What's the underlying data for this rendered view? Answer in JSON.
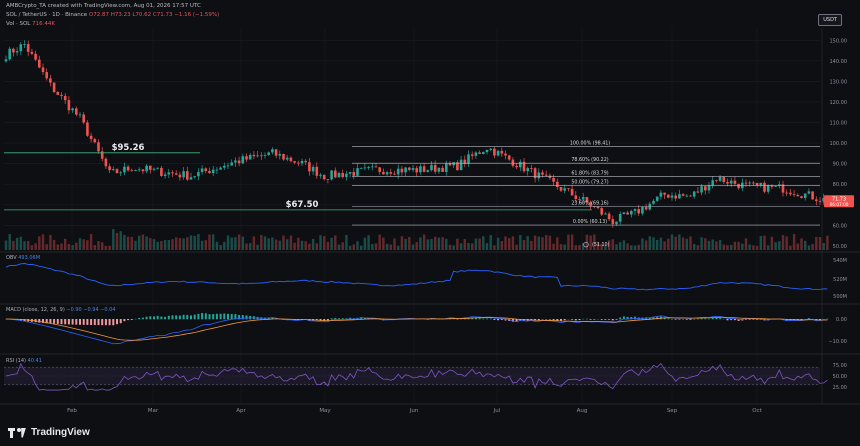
{
  "header": {
    "title": "AMBCrypto_TA created with TradingView.com, Aug 01, 2026 17:57 UTC",
    "symbol_line": "SOL / TetherUS · 1D · Binance",
    "ohlc": "O72.87 H73.23 L70.62 C71.73 −1.16 (−1.59%)",
    "vol_line": "Vol · SOL",
    "vol_value": "716.44K",
    "currency_badge": "USDT"
  },
  "panes": {
    "obv_label": "OBV",
    "obv_value": "493.06M",
    "macd_label": "MACD (close, 12, 26, 9)",
    "macd_values": "−0.90  −0.94  −0.04",
    "rsi_label": "RSI (14)",
    "rsi_value": "40.41"
  },
  "footer": {
    "brand": "TradingView"
  },
  "colors": {
    "up": "#26a69a",
    "down": "#ef5350",
    "ma_blue": "#2962ff",
    "macd_orange": "#f59a3b",
    "rsi_purple": "#7e57c2",
    "fib_line": "#b8bcc6"
  },
  "chart_data": {
    "type": "candlestick",
    "symbol": "SOL / TetherUS",
    "timeframe": "1D",
    "exchange": "Binance",
    "x_ticks": [
      "Feb",
      "Mar",
      "Apr",
      "May",
      "Jun",
      "Jul",
      "Aug",
      "Sep",
      "Oct"
    ],
    "y_ticks": [
      150,
      140,
      130,
      120,
      110,
      100,
      90,
      80,
      70,
      60,
      50
    ],
    "ylim": [
      48,
      155
    ],
    "last_price": 71.73,
    "last_price_label": "71.73",
    "countdown_label": "06:07:00",
    "price_path_anchors": [
      [
        0,
        143
      ],
      [
        5,
        148
      ],
      [
        12,
        128
      ],
      [
        20,
        112
      ],
      [
        28,
        85
      ],
      [
        34,
        88
      ],
      [
        50,
        84
      ],
      [
        62,
        91
      ],
      [
        72,
        95
      ],
      [
        80,
        90
      ],
      [
        86,
        84
      ],
      [
        100,
        87
      ],
      [
        112,
        87
      ],
      [
        122,
        89
      ],
      [
        130,
        98
      ],
      [
        136,
        92
      ],
      [
        142,
        86
      ],
      [
        150,
        78
      ],
      [
        158,
        70
      ],
      [
        164,
        62
      ],
      [
        170,
        66
      ],
      [
        178,
        75
      ],
      [
        185,
        74
      ],
      [
        192,
        83
      ],
      [
        200,
        79
      ],
      [
        210,
        78
      ],
      [
        218,
        74
      ],
      [
        222,
        72
      ]
    ],
    "horizontal_levels": [
      {
        "label": "$95.26",
        "value": 95.26
      },
      {
        "label": "$67.50",
        "value": 67.5
      }
    ],
    "fibonacci": [
      {
        "label": "100.00% (98.41)",
        "value": 98.41
      },
      {
        "label": "78.60% (90.22)",
        "value": 90.22
      },
      {
        "label": "61.80% (83.79)",
        "value": 83.79
      },
      {
        "label": "50.00% (79.27)",
        "value": 79.27
      },
      {
        "label": "23.60% (69.16)",
        "value": 69.16
      },
      {
        "label": "0.00% (60.13)",
        "value": 60.13
      },
      {
        "label": "(51.10)",
        "value": 51.1
      }
    ],
    "obv": {
      "y_ticks": [
        "540M",
        "520M",
        "500M"
      ],
      "last": "493.06M"
    },
    "macd": {
      "y_ticks": [
        "0.00",
        "−10.00"
      ]
    },
    "rsi": {
      "y_ticks": [
        "75.00",
        "50.00",
        "25.00"
      ],
      "bands": [
        70,
        30
      ],
      "last": 40.41
    }
  }
}
